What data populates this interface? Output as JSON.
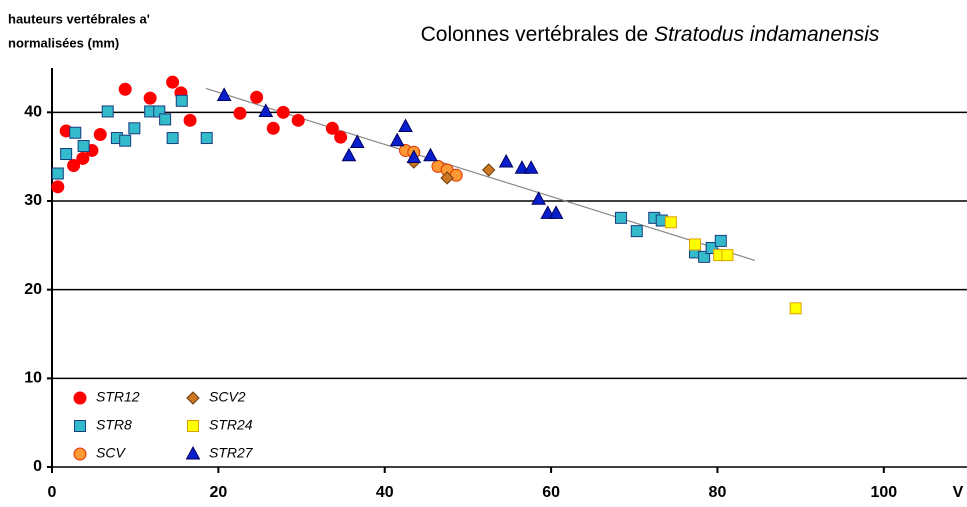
{
  "chart_data": {
    "type": "scatter",
    "title": [
      "Colonnes vertébrales de ",
      "Stratodus indamanensis"
    ],
    "y_label": [
      "hauteurs vertébrales a'",
      "normalisées (mm)"
    ],
    "x_label": "V",
    "xlim": [
      0,
      110
    ],
    "xticks": [
      0,
      20,
      40,
      60,
      80,
      100
    ],
    "ylim": [
      0,
      45
    ],
    "yticks": [
      0,
      10,
      20,
      30,
      40
    ],
    "grid": true,
    "legend": "lower left",
    "trendline": {
      "color": "#888888",
      "x": [
        18.5,
        84.5
      ],
      "y": [
        42.7,
        23.3
      ]
    },
    "series": [
      {
        "name": "STR12",
        "marker": "circle",
        "color": "#ff0000",
        "edge": "#ff0000",
        "x": [
          0.7,
          1.7,
          2.6,
          3.7,
          4.8,
          5.8,
          8.8,
          11.8,
          14.5,
          15.5,
          16.6,
          22.6,
          24.6,
          26.6,
          27.8,
          29.6,
          33.7,
          34.7
        ],
        "y": [
          31.6,
          37.9,
          34.0,
          34.8,
          35.7,
          37.5,
          42.6,
          41.6,
          43.4,
          42.2,
          39.1,
          39.9,
          41.7,
          38.2,
          40.0,
          39.1,
          38.2,
          37.2
        ]
      },
      {
        "name": "STR8",
        "marker": "square",
        "color": "#33bbcc",
        "edge": "#1a3c80",
        "x": [
          0.7,
          1.7,
          2.8,
          3.8,
          6.7,
          7.8,
          8.8,
          9.9,
          11.8,
          12.9,
          13.6,
          14.5,
          15.6,
          18.6,
          68.4,
          70.3,
          72.4,
          73.3,
          77.3,
          78.4,
          79.3,
          80.4
        ],
        "y": [
          33.1,
          35.3,
          37.7,
          36.2,
          40.1,
          37.1,
          36.8,
          38.2,
          40.1,
          40.1,
          39.2,
          37.1,
          41.3,
          37.1,
          28.1,
          26.6,
          28.1,
          27.8,
          24.2,
          23.7,
          24.7,
          25.5
        ]
      },
      {
        "name": "SCV",
        "marker": "circle",
        "color": "#ff9933",
        "edge": "#dd3300",
        "x": [
          42.5,
          43.5,
          46.4,
          47.5,
          48.6
        ],
        "y": [
          35.7,
          35.5,
          33.9,
          33.5,
          32.9
        ]
      },
      {
        "name": "SCV2",
        "marker": "diamond",
        "color": "#cc7722",
        "edge": "#6b3a10",
        "x": [
          43.5,
          47.5,
          52.5
        ],
        "y": [
          34.4,
          32.6,
          33.5
        ]
      },
      {
        "name": "STR24",
        "marker": "square",
        "color": "#ffff00",
        "edge": "#e0a000",
        "x": [
          74.4,
          77.3,
          80.2,
          81.2,
          89.4
        ],
        "y": [
          27.6,
          25.1,
          23.9,
          23.9,
          17.9
        ]
      },
      {
        "name": "STR27",
        "marker": "triangle",
        "color": "#0a1fcc",
        "edge": "#000060",
        "x": [
          20.7,
          25.7,
          35.7,
          36.7,
          41.5,
          42.5,
          43.5,
          45.5,
          54.6,
          56.5,
          57.6,
          58.5,
          59.6,
          60.6
        ],
        "y": [
          41.9,
          40.1,
          35.1,
          36.6,
          36.8,
          38.4,
          34.9,
          35.1,
          34.4,
          33.7,
          33.7,
          30.2,
          28.6,
          28.6
        ]
      }
    ]
  }
}
